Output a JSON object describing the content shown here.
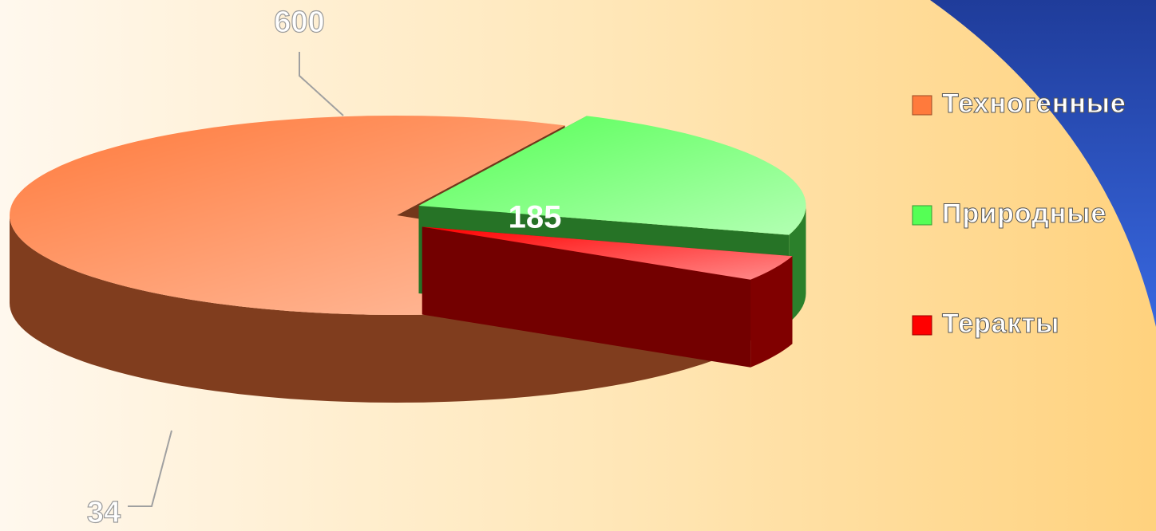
{
  "chart_data": {
    "type": "pie3d",
    "categories": [
      "Техногенные",
      "Природные",
      "Теракты"
    ],
    "values": [
      600,
      185,
      34
    ],
    "colors": [
      "#ff7a3c",
      "#55ff55",
      "#ff0000"
    ],
    "legend": "right"
  }
}
